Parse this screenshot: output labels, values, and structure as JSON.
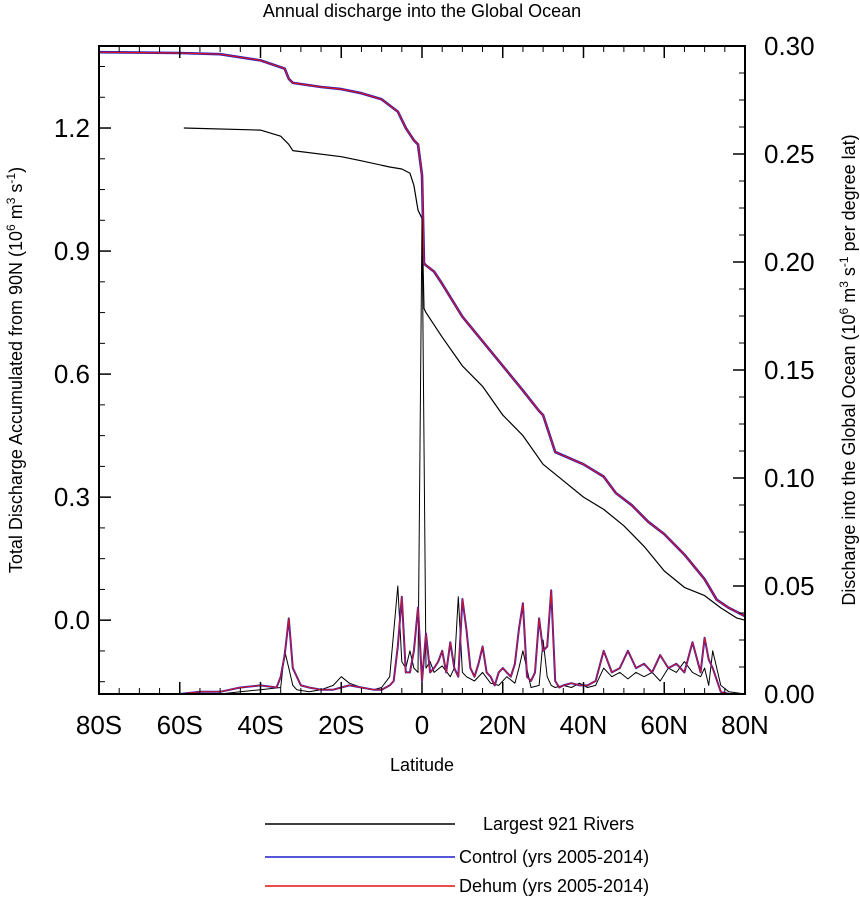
{
  "chart_data": {
    "type": "line",
    "title": "Annual discharge into the Global Ocean",
    "xlabel": "Latitude",
    "ylabel_left_main": "Total Discharge Accumulated from 90N (10",
    "ylabel_left_exp1": "6",
    "ylabel_left_mid": " m",
    "ylabel_left_exp2": "3",
    "ylabel_left_mid2": " s",
    "ylabel_left_exp3": "-1",
    "ylabel_left_end": ")",
    "ylabel_right_main": "Discharge into the Global Ocean (10",
    "ylabel_right_exp1": "6",
    "ylabel_right_mid": " m",
    "ylabel_right_exp2": "3",
    "ylabel_right_mid2": " s",
    "ylabel_right_exp3": "-1",
    "ylabel_right_end": " per degree lat)",
    "xlim": [
      -80,
      80
    ],
    "ylim_left": [
      -0.18,
      1.4
    ],
    "ylim_right": [
      0,
      0.3
    ],
    "x_ticks": [
      -80,
      -60,
      -40,
      -20,
      0,
      20,
      40,
      60,
      80
    ],
    "x_tick_labels": [
      "80S",
      "60S",
      "40S",
      "20S",
      "0",
      "20N",
      "40N",
      "60N",
      "80N"
    ],
    "y_left_ticks": [
      0.0,
      0.3,
      0.6,
      0.9,
      1.2
    ],
    "y_left_tick_labels": [
      "0.0",
      "0.3",
      "0.6",
      "0.9",
      "1.2"
    ],
    "y_right_ticks": [
      0,
      0.05,
      0.1,
      0.15,
      0.2,
      0.25,
      0.3
    ],
    "y_right_tick_labels": [
      "0.00",
      "0.05",
      "0.10",
      "0.15",
      "0.20",
      "0.25",
      "0.30"
    ],
    "legend_position": "bottom",
    "series": [
      {
        "name": "Largest 921 Rivers",
        "color": "#000000",
        "width": 1.2,
        "axis": "left",
        "x": [
          -59,
          -40,
          -35,
          -33,
          -32,
          -20,
          -15,
          -8,
          -5,
          -3,
          -2,
          -1,
          0,
          0.5,
          1,
          5,
          10,
          15,
          20,
          25,
          30,
          35,
          40,
          45,
          50,
          55,
          60,
          65,
          70,
          74,
          78,
          80
        ],
        "y": [
          1.2,
          1.195,
          1.18,
          1.16,
          1.145,
          1.13,
          1.12,
          1.105,
          1.1,
          1.09,
          1.06,
          1.0,
          0.98,
          0.76,
          0.75,
          0.69,
          0.62,
          0.57,
          0.5,
          0.45,
          0.38,
          0.34,
          0.3,
          0.27,
          0.23,
          0.18,
          0.12,
          0.08,
          0.06,
          0.03,
          0.005,
          0.0
        ]
      },
      {
        "name": "Control (yrs 2005-2014)",
        "color": "#1f1fcc",
        "width": 2.6,
        "axis": "left",
        "x": [
          -80,
          -60,
          -50,
          -40,
          -34,
          -33,
          -32,
          -25,
          -20,
          -15,
          -10,
          -6,
          -4,
          -2,
          -1,
          0,
          0.5,
          1,
          3,
          5,
          10,
          15,
          20,
          25,
          29,
          30,
          33,
          40,
          45,
          48,
          52,
          56,
          60,
          65,
          70,
          73,
          76,
          80
        ],
        "y": [
          1.385,
          1.383,
          1.38,
          1.365,
          1.345,
          1.32,
          1.31,
          1.3,
          1.295,
          1.285,
          1.27,
          1.24,
          1.2,
          1.17,
          1.16,
          1.085,
          0.87,
          0.865,
          0.85,
          0.82,
          0.74,
          0.68,
          0.62,
          0.56,
          0.51,
          0.5,
          0.41,
          0.38,
          0.35,
          0.31,
          0.28,
          0.24,
          0.21,
          0.16,
          0.1,
          0.05,
          0.03,
          0.01
        ]
      },
      {
        "name": "Dehum (yrs 2005-2014)",
        "color": "#e01414",
        "width": 1.2,
        "axis": "left",
        "x": [
          -80,
          -60,
          -50,
          -40,
          -34,
          -33,
          -32,
          -25,
          -20,
          -15,
          -10,
          -6,
          -4,
          -2,
          -1,
          0,
          0.5,
          1,
          3,
          5,
          10,
          15,
          20,
          25,
          29,
          30,
          33,
          40,
          45,
          48,
          52,
          56,
          60,
          65,
          70,
          73,
          76,
          80
        ],
        "y": [
          1.385,
          1.383,
          1.38,
          1.365,
          1.345,
          1.32,
          1.31,
          1.3,
          1.295,
          1.285,
          1.27,
          1.24,
          1.2,
          1.17,
          1.16,
          1.085,
          0.87,
          0.865,
          0.85,
          0.82,
          0.74,
          0.68,
          0.62,
          0.56,
          0.51,
          0.5,
          0.41,
          0.38,
          0.35,
          0.31,
          0.28,
          0.24,
          0.21,
          0.16,
          0.1,
          0.05,
          0.03,
          0.01
        ]
      },
      {
        "name": "Largest 921 Rivers",
        "color": "#000000",
        "width": 1.0,
        "axis": "right",
        "x": [
          -80,
          -60,
          -50,
          -45,
          -40,
          -35,
          -34,
          -33,
          -32,
          -31,
          -28,
          -25,
          -22,
          -20,
          -18,
          -15,
          -12,
          -10,
          -8,
          -6,
          -5,
          -4,
          -3,
          -2,
          -1,
          0,
          1,
          2,
          3,
          5,
          7,
          8,
          9,
          10,
          11,
          13,
          15,
          17,
          19,
          21,
          23,
          24,
          25,
          27,
          29,
          30,
          31,
          32,
          33,
          35,
          37,
          39,
          41,
          43,
          45,
          47,
          49,
          51,
          53,
          55,
          57,
          59,
          61,
          63,
          65,
          67,
          69,
          70,
          71,
          72,
          74,
          76,
          80
        ],
        "y": [
          0,
          0,
          0,
          0.001,
          0.002,
          0.003,
          0.02,
          0.012,
          0.004,
          0.002,
          0.001,
          0.002,
          0.004,
          0.008,
          0.005,
          0.003,
          0.002,
          0.003,
          0.008,
          0.05,
          0.015,
          0.012,
          0.02,
          0.012,
          0.01,
          0.22,
          0.012,
          0.015,
          0.01,
          0.013,
          0.008,
          0.012,
          0.045,
          0.01,
          0.008,
          0.006,
          0.01,
          0.005,
          0.004,
          0.008,
          0.005,
          0.012,
          0.02,
          0.003,
          0.004,
          0.025,
          0.008,
          0.004,
          0.003,
          0.004,
          0.003,
          0.005,
          0.003,
          0.004,
          0.012,
          0.008,
          0.01,
          0.007,
          0.01,
          0.008,
          0.01,
          0.006,
          0.012,
          0.01,
          0.015,
          0.01,
          0.008,
          0.012,
          0.004,
          0.02,
          0.004,
          0.001,
          0
        ]
      },
      {
        "name": "Control (yrs 2005-2014)",
        "color": "#1f1fcc",
        "width": 2.0,
        "axis": "right",
        "x": [
          -80,
          -70,
          -60,
          -55,
          -50,
          -45,
          -40,
          -36,
          -35,
          -34,
          -33,
          -32,
          -30,
          -28,
          -25,
          -22,
          -20,
          -18,
          -15,
          -12,
          -10,
          -8,
          -7,
          -6,
          -5,
          -4,
          -3,
          -2,
          -1,
          0,
          1,
          2,
          3,
          4,
          5,
          6,
          7,
          8,
          9,
          10,
          11,
          12,
          13,
          14,
          15,
          16,
          17,
          18,
          19,
          20,
          21,
          22,
          23,
          24,
          25,
          26,
          27,
          28,
          29,
          30,
          31,
          32,
          33,
          34,
          35,
          37,
          39,
          41,
          43,
          45,
          47,
          49,
          51,
          53,
          55,
          57,
          59,
          61,
          63,
          65,
          67,
          69,
          70,
          71,
          72,
          74,
          76,
          80
        ],
        "y": [
          0,
          0,
          0,
          0.001,
          0.001,
          0.003,
          0.004,
          0.003,
          0.008,
          0.018,
          0.035,
          0.012,
          0.004,
          0.003,
          0.002,
          0.002,
          0.003,
          0.004,
          0.003,
          0.002,
          0.002,
          0.004,
          0.006,
          0.022,
          0.045,
          0.01,
          0.01,
          0.02,
          0.04,
          0.006,
          0.028,
          0.01,
          0.012,
          0.015,
          0.02,
          0.01,
          0.024,
          0.012,
          0.008,
          0.044,
          0.03,
          0.012,
          0.008,
          0.014,
          0.022,
          0.01,
          0.008,
          0.004,
          0.01,
          0.012,
          0.01,
          0.008,
          0.014,
          0.03,
          0.042,
          0.008,
          0.006,
          0.01,
          0.035,
          0.02,
          0.022,
          0.048,
          0.006,
          0.003,
          0.004,
          0.005,
          0.004,
          0.004,
          0.006,
          0.02,
          0.01,
          0.012,
          0.02,
          0.012,
          0.014,
          0.01,
          0.018,
          0.012,
          0.014,
          0.01,
          0.024,
          0.01,
          0.026,
          0.016,
          0.012,
          0.001,
          0,
          0
        ]
      },
      {
        "name": "Dehum (yrs 2005-2014)",
        "color": "#e01414",
        "width": 1.0,
        "axis": "right",
        "x": [
          -80,
          -70,
          -60,
          -55,
          -50,
          -45,
          -40,
          -36,
          -35,
          -34,
          -33,
          -32,
          -30,
          -28,
          -25,
          -22,
          -20,
          -18,
          -15,
          -12,
          -10,
          -8,
          -7,
          -6,
          -5,
          -4,
          -3,
          -2,
          -1,
          0,
          1,
          2,
          3,
          4,
          5,
          6,
          7,
          8,
          9,
          10,
          11,
          12,
          13,
          14,
          15,
          16,
          17,
          18,
          19,
          20,
          21,
          22,
          23,
          24,
          25,
          26,
          27,
          28,
          29,
          30,
          31,
          32,
          33,
          34,
          35,
          37,
          39,
          41,
          43,
          45,
          47,
          49,
          51,
          53,
          55,
          57,
          59,
          61,
          63,
          65,
          67,
          69,
          70,
          71,
          72,
          74,
          76,
          80
        ],
        "y": [
          0,
          0,
          0,
          0.001,
          0.001,
          0.003,
          0.004,
          0.003,
          0.008,
          0.018,
          0.035,
          0.012,
          0.004,
          0.003,
          0.002,
          0.002,
          0.003,
          0.004,
          0.003,
          0.002,
          0.002,
          0.004,
          0.006,
          0.022,
          0.045,
          0.01,
          0.01,
          0.02,
          0.04,
          0.006,
          0.028,
          0.01,
          0.012,
          0.015,
          0.02,
          0.01,
          0.024,
          0.012,
          0.008,
          0.044,
          0.03,
          0.012,
          0.008,
          0.014,
          0.022,
          0.01,
          0.008,
          0.004,
          0.01,
          0.012,
          0.01,
          0.008,
          0.014,
          0.03,
          0.042,
          0.008,
          0.006,
          0.01,
          0.035,
          0.02,
          0.022,
          0.048,
          0.006,
          0.003,
          0.004,
          0.005,
          0.004,
          0.004,
          0.006,
          0.02,
          0.01,
          0.012,
          0.02,
          0.012,
          0.014,
          0.01,
          0.018,
          0.012,
          0.014,
          0.01,
          0.024,
          0.01,
          0.026,
          0.016,
          0.012,
          0.001,
          0,
          0
        ]
      }
    ],
    "legend": [
      {
        "label": "Largest 921 Rivers",
        "color": "#000000"
      },
      {
        "label": "Control (yrs 2005-2014)",
        "color": "#1f1fcc"
      },
      {
        "label": "Dehum (yrs 2005-2014)",
        "color": "#e01414"
      }
    ]
  }
}
